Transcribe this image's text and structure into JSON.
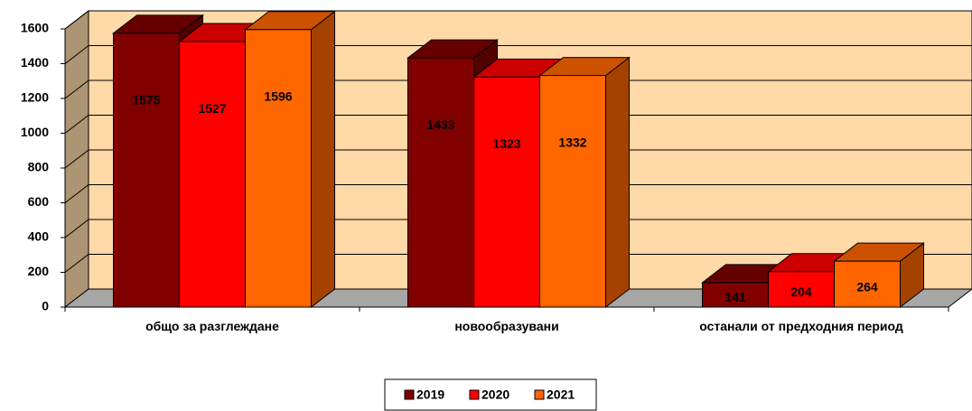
{
  "chart_data": {
    "type": "bar3d",
    "categories": [
      "общо за разглеждане",
      "новообразувани",
      "останали от предходния период"
    ],
    "series": [
      {
        "name": "2019",
        "color": "#800000",
        "values": [
          1575,
          1433,
          141
        ]
      },
      {
        "name": "2020",
        "color": "#ff0000",
        "values": [
          1527,
          1323,
          204
        ]
      },
      {
        "name": "2021",
        "color": "#ff6600",
        "values": [
          1596,
          1332,
          264
        ]
      }
    ],
    "ylim": [
      0,
      1600
    ],
    "yticks": [
      0,
      200,
      400,
      600,
      800,
      1000,
      1200,
      1400,
      1600
    ],
    "grid": true,
    "legend": "bottom",
    "wall_color": "#ffd9a8",
    "floor_color": "#a6a6a6"
  }
}
